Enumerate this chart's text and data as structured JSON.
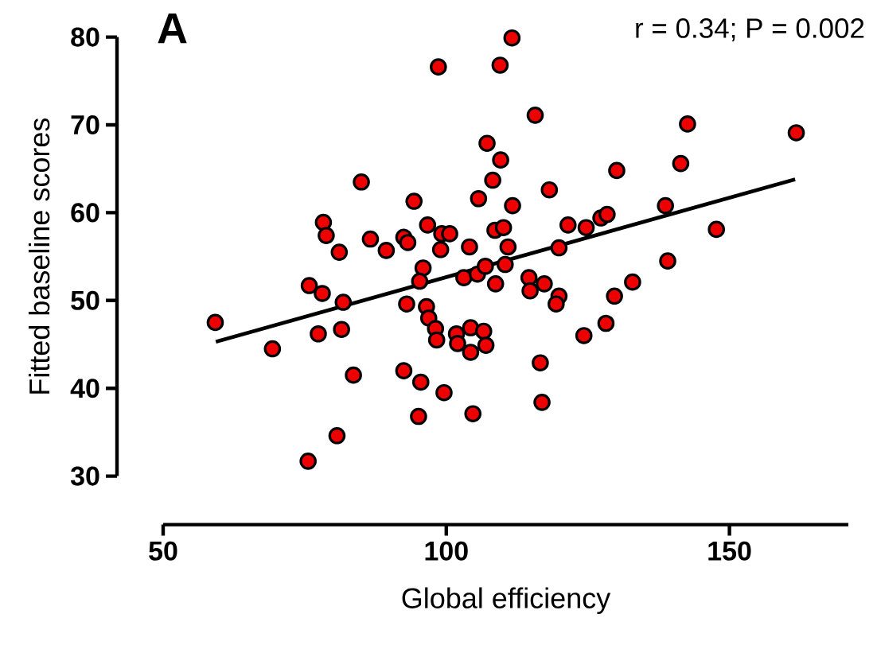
{
  "chart_data": {
    "type": "scatter",
    "title": "A",
    "annotations": [
      "r = 0.34; P = 0.002"
    ],
    "xlabel": "Global efficiency",
    "ylabel": "Fitted baseline scores",
    "xlim": [
      50,
      171
    ],
    "xticks": [
      50,
      100,
      150
    ],
    "ylim": [
      30,
      80
    ],
    "yticks": [
      30,
      40,
      50,
      60,
      70,
      80
    ],
    "grid": false,
    "series": [
      {
        "color": "#ee0000",
        "marker": "circle",
        "x": [
          85.0,
          78.3,
          78.8,
          81.1,
          86.6,
          89.4,
          92.5,
          93.2,
          94.3,
          111.6,
          98.6,
          109.5,
          115.7,
          142.6,
          161.8,
          107.2,
          109.6,
          141.4,
          130.1,
          108.2,
          118.2,
          105.7,
          111.7,
          138.7,
          96.7,
          121.5,
          124.7,
          127.3,
          128.4,
          147.7,
          99.2,
          100.6,
          99.0,
          104.1,
          108.6,
          110.1,
          110.9,
          119.9,
          95.9,
          95.3,
          103.1,
          105.5,
          106.9,
          110.4,
          108.7,
          114.6,
          114.8,
          117.3,
          119.9,
          119.4,
          139.1,
          132.9,
          129.7,
          128.2,
          124.3,
          93.0,
          96.5,
          96.9,
          98.1,
          98.3,
          101.8,
          102.0,
          104.3,
          106.6,
          107.0,
          104.3,
          116.6,
          116.9,
          92.5,
          95.5,
          99.6,
          95.1,
          104.7,
          75.8,
          78.1,
          81.8,
          59.2,
          69.3,
          77.4,
          81.5,
          83.6,
          80.7,
          75.6
        ],
        "values": [
          63.5,
          58.9,
          57.4,
          55.5,
          57.0,
          55.7,
          57.2,
          56.6,
          61.3,
          79.9,
          76.6,
          76.8,
          71.1,
          70.1,
          69.1,
          67.9,
          66.0,
          65.6,
          64.8,
          63.7,
          62.6,
          61.6,
          60.8,
          60.8,
          58.6,
          58.6,
          58.3,
          59.4,
          59.8,
          58.1,
          57.6,
          57.6,
          55.8,
          56.1,
          58.0,
          58.3,
          56.1,
          56.0,
          53.7,
          52.2,
          52.6,
          53.0,
          53.9,
          54.1,
          51.9,
          52.6,
          51.1,
          51.9,
          50.5,
          49.6,
          54.5,
          52.1,
          50.5,
          47.4,
          46.0,
          49.6,
          49.3,
          48.0,
          46.8,
          45.5,
          46.2,
          45.1,
          46.9,
          46.5,
          44.9,
          44.1,
          42.9,
          38.4,
          42.0,
          40.7,
          39.5,
          36.8,
          37.1,
          51.7,
          50.8,
          49.8,
          47.5,
          44.5,
          46.2,
          46.7,
          41.5,
          34.6,
          31.7
        ]
      },
      {
        "type": "line",
        "color": "#000000",
        "marker": "none",
        "line_style": "solid",
        "x": [
          59.3,
          161.6
        ],
        "values": [
          45.3,
          63.8
        ]
      }
    ]
  }
}
